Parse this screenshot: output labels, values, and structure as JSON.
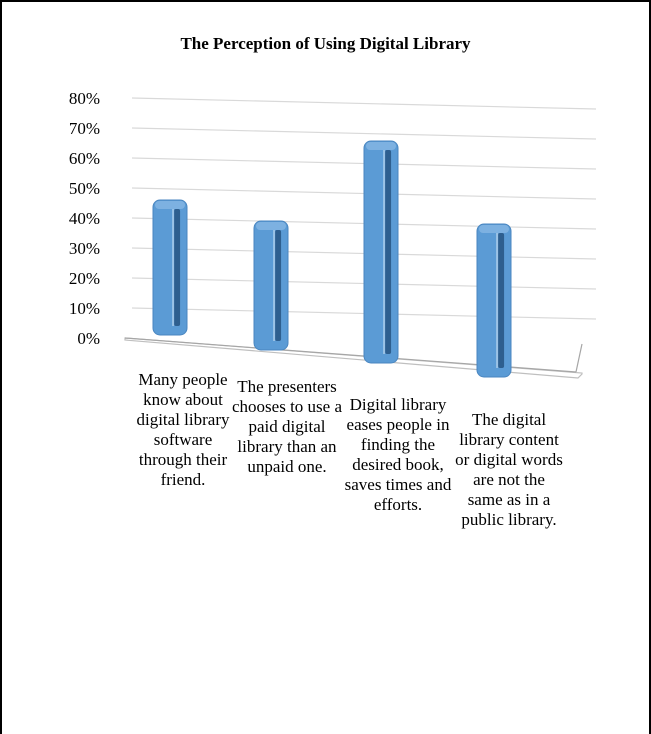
{
  "chart_data": {
    "type": "bar",
    "title": "The Perception of Using Digital Library",
    "categories": [
      "Many people know about digital library software through their friend.",
      "The presenters chooses to use a paid digital library than an unpaid one.",
      "Digital library eases people in finding the desired book, saves times and efforts.",
      "The digital library content or digital words are not the same as in a public library."
    ],
    "values": [
      45,
      43,
      74,
      51
    ],
    "y_ticks": [
      "0%",
      "10%",
      "20%",
      "30%",
      "40%",
      "50%",
      "60%",
      "70%",
      "80%"
    ],
    "ylim": [
      0,
      80
    ],
    "grid": true,
    "bar_color": "#5b9bd5",
    "bar_dark_color": "#2e5f8f",
    "grid_color": "#d9d9d9",
    "xlabel": "",
    "ylabel": ""
  }
}
